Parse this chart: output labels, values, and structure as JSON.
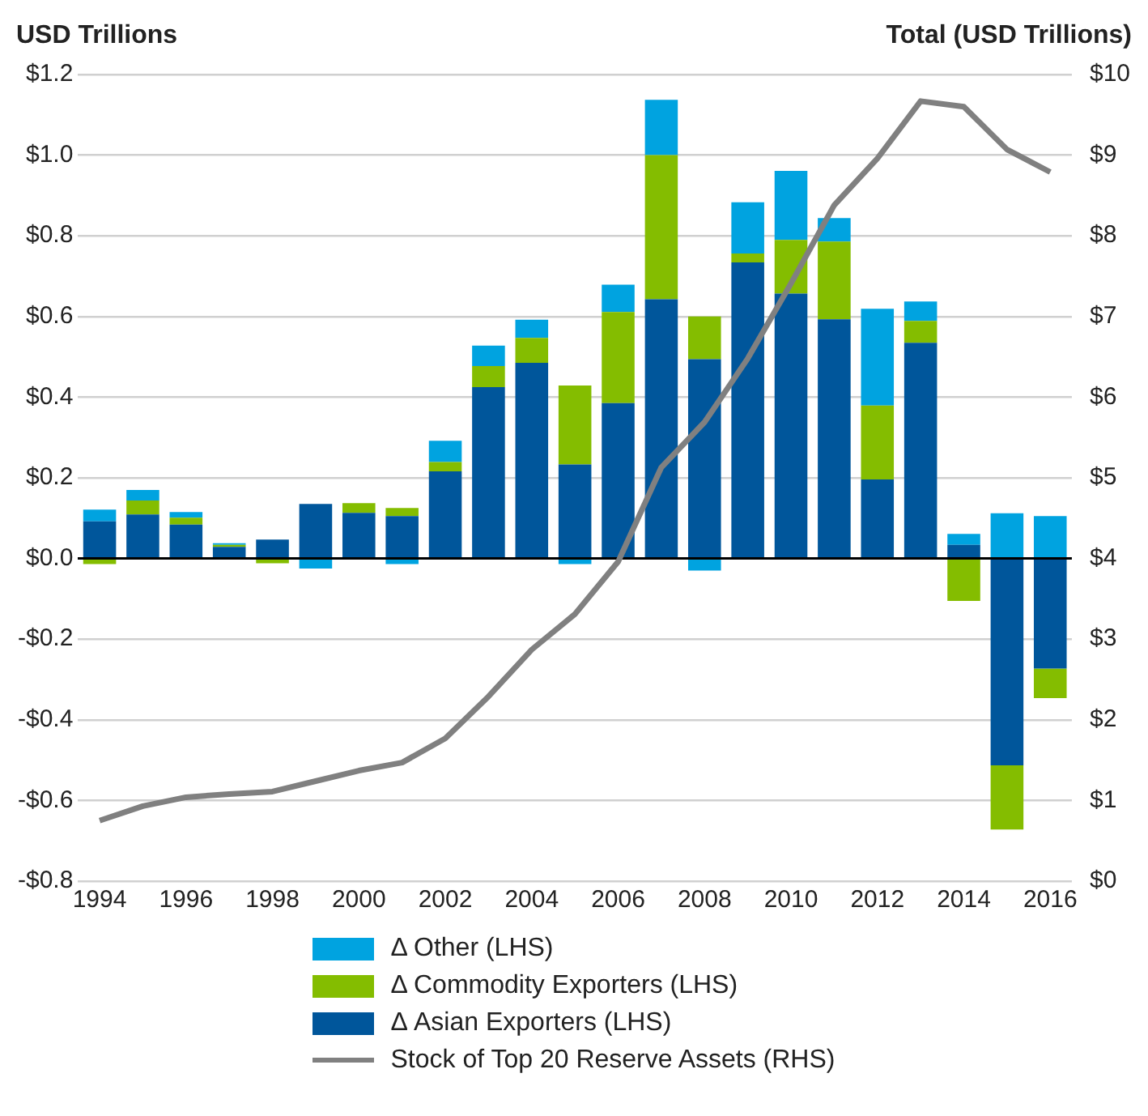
{
  "chart_data": {
    "type": "bar",
    "ylabel": "USD Trillions",
    "y2label": "Total (USD Trillions)",
    "categories": [
      "1994",
      null,
      "1996",
      null,
      "1998",
      null,
      "2000",
      null,
      "2002",
      null,
      "2004",
      null,
      "2006",
      null,
      "2008",
      null,
      "2010",
      null,
      "2012",
      null,
      "2014",
      null,
      "2016"
    ],
    "stacked": true,
    "series": [
      {
        "name": "Δ Asian Exporters (LHS)",
        "color": "#00569b",
        "values": [
          0.092,
          0.109,
          0.084,
          0.029,
          0.047,
          0.135,
          0.113,
          0.105,
          0.216,
          0.425,
          0.485,
          0.233,
          0.385,
          0.643,
          0.494,
          0.734,
          0.657,
          0.593,
          0.196,
          0.535,
          0.034,
          -0.513,
          -0.273
        ]
      },
      {
        "name": "Δ Commodity Exporters (LHS)",
        "color": "#84bd00",
        "values": [
          -0.014,
          0.035,
          0.017,
          0.005,
          -0.012,
          null,
          0.024,
          0.02,
          0.023,
          0.052,
          0.062,
          0.196,
          0.226,
          0.357,
          0.106,
          0.022,
          0.133,
          0.193,
          0.183,
          0.054,
          -0.105,
          -0.159,
          -0.073
        ]
      },
      {
        "name": "Δ Other (LHS)",
        "color": "#00a3e0",
        "values": [
          0.029,
          0.026,
          0.014,
          0.004,
          null,
          -0.025,
          null,
          -0.014,
          0.053,
          0.051,
          0.045,
          -0.014,
          0.068,
          0.137,
          -0.03,
          0.127,
          0.171,
          0.058,
          0.24,
          0.048,
          0.027,
          0.112,
          0.105
        ]
      },
      {
        "name": "Stock of Top 20 Reserve Assets (RHS)",
        "type": "line",
        "axis": "y2",
        "color": "#808080",
        "values": [
          0.75,
          0.93,
          1.04,
          1.08,
          1.11,
          1.24,
          1.37,
          1.47,
          1.77,
          2.29,
          2.87,
          3.31,
          3.96,
          5.13,
          5.69,
          6.48,
          7.41,
          8.38,
          8.96,
          9.67,
          9.6,
          9.07,
          8.79
        ]
      }
    ],
    "ylim": [
      -0.8,
      1.2
    ],
    "yticks": [
      {
        "value": -0.8,
        "label": "-$0.8"
      },
      {
        "value": -0.6,
        "label": "-$0.6"
      },
      {
        "value": -0.4,
        "label": "-$0.4"
      },
      {
        "value": -0.2,
        "label": "-$0.2"
      },
      {
        "value": 0,
        "label": "$0.0"
      },
      {
        "value": 0.2,
        "label": "$0.2"
      },
      {
        "value": 0.4,
        "label": "$0.4"
      },
      {
        "value": 0.6,
        "label": "$0.6"
      },
      {
        "value": 0.8,
        "label": "$0.8"
      },
      {
        "value": 1.0,
        "label": "$1.0"
      },
      {
        "value": 1.2,
        "label": "$1.2"
      }
    ],
    "y2lim": [
      0,
      10
    ],
    "y2ticks": [
      {
        "value": 0,
        "label": "$0"
      },
      {
        "value": 1,
        "label": "$1"
      },
      {
        "value": 2,
        "label": "$2"
      },
      {
        "value": 3,
        "label": "$3"
      },
      {
        "value": 4,
        "label": "$4"
      },
      {
        "value": 5,
        "label": "$5"
      },
      {
        "value": 6,
        "label": "$6"
      },
      {
        "value": 7,
        "label": "$7"
      },
      {
        "value": 8,
        "label": "$8"
      },
      {
        "value": 9,
        "label": "$9"
      },
      {
        "value": 10,
        "label": "$10"
      }
    ],
    "grid": "y",
    "legend": "bottom",
    "marker": "none",
    "line_style": "solid"
  }
}
